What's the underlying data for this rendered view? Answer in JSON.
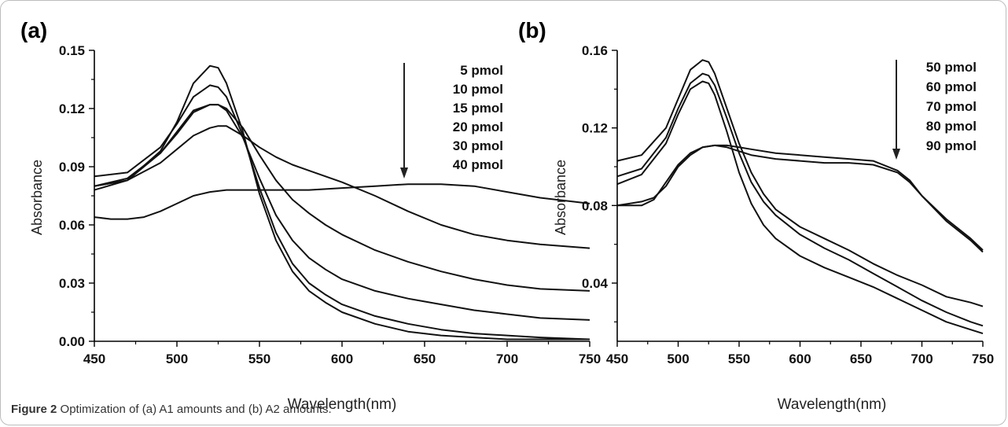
{
  "caption": {
    "label": "Figure 2",
    "text": "Optimization of (a) A1 amounts and (b) A2 amounts."
  },
  "colors": {
    "line": "#111111",
    "axis": "#000000"
  },
  "chart_data": [
    {
      "type": "line",
      "panel_label": "(a)",
      "xlabel": "Wavelength(nm)",
      "ylabel": "Absorbance",
      "xlim": [
        450,
        750
      ],
      "ylim": [
        0,
        0.15
      ],
      "xticks": [
        450,
        500,
        550,
        600,
        650,
        700,
        750
      ],
      "yticks": [
        0.0,
        0.03,
        0.06,
        0.09,
        0.12,
        0.15
      ],
      "ytick_labels": [
        "0.00",
        "0.03",
        "0.06",
        "0.09",
        "0.12",
        "0.15"
      ],
      "legend": [
        "5 pmol",
        "10 pmol",
        "15 pmol",
        "20 pmol",
        "30 pmol",
        "40 pmol"
      ],
      "series": [
        {
          "name": "5 pmol",
          "x": [
            450,
            470,
            490,
            500,
            510,
            520,
            525,
            530,
            540,
            550,
            560,
            570,
            580,
            590,
            600,
            620,
            640,
            660,
            680,
            700,
            720,
            750
          ],
          "y": [
            0.08,
            0.083,
            0.098,
            0.113,
            0.133,
            0.142,
            0.141,
            0.133,
            0.108,
            0.076,
            0.052,
            0.036,
            0.026,
            0.02,
            0.015,
            0.009,
            0.005,
            0.003,
            0.002,
            0.001,
            0.001,
            0.001
          ]
        },
        {
          "name": "10 pmol",
          "x": [
            450,
            470,
            490,
            500,
            510,
            520,
            525,
            530,
            540,
            550,
            560,
            570,
            580,
            590,
            600,
            620,
            640,
            660,
            680,
            700,
            720,
            750
          ],
          "y": [
            0.085,
            0.087,
            0.1,
            0.112,
            0.126,
            0.132,
            0.131,
            0.126,
            0.106,
            0.079,
            0.056,
            0.04,
            0.03,
            0.024,
            0.019,
            0.013,
            0.009,
            0.006,
            0.004,
            0.003,
            0.002,
            0.001
          ]
        },
        {
          "name": "15 pmol",
          "x": [
            450,
            470,
            490,
            500,
            510,
            520,
            525,
            530,
            540,
            550,
            560,
            570,
            580,
            590,
            600,
            620,
            640,
            660,
            680,
            700,
            720,
            750
          ],
          "y": [
            0.078,
            0.083,
            0.097,
            0.108,
            0.119,
            0.122,
            0.122,
            0.119,
            0.105,
            0.084,
            0.065,
            0.052,
            0.043,
            0.037,
            0.032,
            0.026,
            0.022,
            0.019,
            0.016,
            0.014,
            0.012,
            0.011
          ]
        },
        {
          "name": "20 pmol",
          "x": [
            450,
            470,
            490,
            500,
            510,
            520,
            525,
            530,
            540,
            550,
            560,
            570,
            580,
            590,
            600,
            620,
            640,
            660,
            680,
            700,
            720,
            750
          ],
          "y": [
            0.08,
            0.084,
            0.097,
            0.107,
            0.118,
            0.122,
            0.122,
            0.12,
            0.11,
            0.096,
            0.083,
            0.073,
            0.066,
            0.06,
            0.055,
            0.047,
            0.041,
            0.036,
            0.032,
            0.029,
            0.027,
            0.026
          ]
        },
        {
          "name": "30 pmol",
          "x": [
            450,
            470,
            490,
            500,
            510,
            520,
            525,
            530,
            540,
            550,
            560,
            570,
            580,
            590,
            600,
            620,
            640,
            660,
            680,
            700,
            720,
            750
          ],
          "y": [
            0.08,
            0.083,
            0.092,
            0.099,
            0.106,
            0.11,
            0.111,
            0.111,
            0.106,
            0.1,
            0.095,
            0.091,
            0.088,
            0.085,
            0.082,
            0.075,
            0.067,
            0.06,
            0.055,
            0.052,
            0.05,
            0.048
          ]
        },
        {
          "name": "40 pmol",
          "x": [
            450,
            460,
            470,
            480,
            490,
            500,
            510,
            520,
            530,
            540,
            550,
            560,
            580,
            600,
            620,
            640,
            660,
            680,
            700,
            720,
            740,
            750
          ],
          "y": [
            0.064,
            0.063,
            0.063,
            0.064,
            0.067,
            0.071,
            0.075,
            0.077,
            0.078,
            0.078,
            0.078,
            0.078,
            0.078,
            0.079,
            0.08,
            0.081,
            0.081,
            0.08,
            0.077,
            0.074,
            0.072,
            0.071
          ]
        }
      ]
    },
    {
      "type": "line",
      "panel_label": "(b)",
      "xlabel": "Wavelength(nm)",
      "ylabel": "Absorbance",
      "xlim": [
        450,
        750
      ],
      "ylim": [
        0.01,
        0.16
      ],
      "xticks": [
        450,
        500,
        550,
        600,
        650,
        700,
        750
      ],
      "yticks": [
        0.04,
        0.08,
        0.12,
        0.16
      ],
      "ytick_labels": [
        "0.04",
        "0.08",
        "0.12",
        "0.16"
      ],
      "legend": [
        "50 pmol",
        "60 pmol",
        "70 pmol",
        "80 pmol",
        "90 pmol"
      ],
      "series": [
        {
          "name": "50 pmol",
          "x": [
            450,
            470,
            490,
            500,
            510,
            520,
            525,
            530,
            540,
            550,
            560,
            570,
            580,
            600,
            620,
            640,
            660,
            680,
            700,
            720,
            740,
            750
          ],
          "y": [
            0.103,
            0.106,
            0.12,
            0.135,
            0.15,
            0.155,
            0.154,
            0.148,
            0.13,
            0.112,
            0.097,
            0.086,
            0.078,
            0.069,
            0.063,
            0.057,
            0.05,
            0.044,
            0.039,
            0.033,
            0.03,
            0.028
          ]
        },
        {
          "name": "60 pmol",
          "x": [
            450,
            470,
            490,
            500,
            510,
            520,
            525,
            530,
            540,
            550,
            560,
            570,
            580,
            600,
            620,
            640,
            660,
            680,
            700,
            720,
            740,
            750
          ],
          "y": [
            0.095,
            0.099,
            0.115,
            0.13,
            0.143,
            0.148,
            0.147,
            0.142,
            0.125,
            0.107,
            0.092,
            0.082,
            0.075,
            0.065,
            0.058,
            0.052,
            0.045,
            0.038,
            0.031,
            0.025,
            0.02,
            0.018
          ]
        },
        {
          "name": "70 pmol",
          "x": [
            450,
            470,
            490,
            500,
            510,
            520,
            525,
            530,
            540,
            550,
            560,
            570,
            580,
            600,
            620,
            640,
            660,
            680,
            700,
            720,
            740,
            750
          ],
          "y": [
            0.091,
            0.096,
            0.112,
            0.127,
            0.14,
            0.144,
            0.143,
            0.137,
            0.118,
            0.097,
            0.081,
            0.07,
            0.063,
            0.054,
            0.048,
            0.043,
            0.038,
            0.032,
            0.026,
            0.02,
            0.016,
            0.014
          ]
        },
        {
          "name": "80 pmol",
          "x": [
            450,
            460,
            470,
            480,
            490,
            500,
            510,
            520,
            530,
            540,
            550,
            560,
            580,
            600,
            620,
            640,
            660,
            680,
            690,
            700,
            720,
            740,
            750
          ],
          "y": [
            0.08,
            0.081,
            0.082,
            0.084,
            0.09,
            0.1,
            0.106,
            0.11,
            0.111,
            0.111,
            0.11,
            0.109,
            0.107,
            0.106,
            0.105,
            0.104,
            0.103,
            0.098,
            0.093,
            0.085,
            0.072,
            0.062,
            0.056
          ]
        },
        {
          "name": "90 pmol",
          "x": [
            450,
            460,
            470,
            480,
            490,
            500,
            510,
            520,
            530,
            540,
            550,
            560,
            580,
            600,
            620,
            640,
            660,
            680,
            690,
            700,
            720,
            740,
            750
          ],
          "y": [
            0.08,
            0.08,
            0.08,
            0.083,
            0.092,
            0.101,
            0.107,
            0.11,
            0.111,
            0.11,
            0.108,
            0.106,
            0.104,
            0.103,
            0.102,
            0.102,
            0.101,
            0.097,
            0.092,
            0.085,
            0.073,
            0.063,
            0.057
          ]
        }
      ]
    }
  ]
}
